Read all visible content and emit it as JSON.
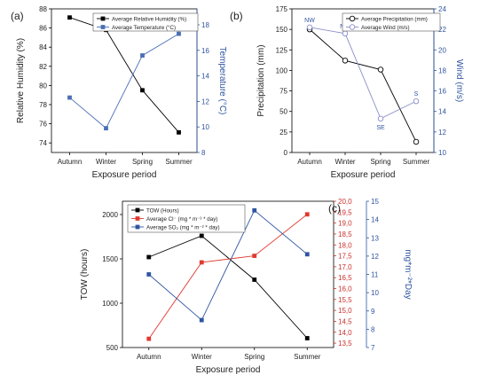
{
  "chart_data": [
    {
      "type": "line",
      "panel_label": "(a)",
      "categories": [
        "Autumn",
        "Winter",
        "Spring",
        "Summer"
      ],
      "xlabel": "Exposure period",
      "ylabel": "Relative Humidity (%)",
      "y2label": "Temperature (°C)",
      "ylim": [
        73,
        88
      ],
      "yticks": [
        74,
        76,
        78,
        80,
        82,
        84,
        86,
        88
      ],
      "y2lim": [
        8,
        19.25
      ],
      "y2ticks": [
        8,
        10,
        12,
        14,
        16,
        18
      ],
      "legend_position": "top-right",
      "series": [
        {
          "name": "Average Relative Humidity (%)",
          "axis": "left",
          "color": "#000000",
          "marker": "filled-square",
          "values": [
            87.1,
            85.8,
            79.5,
            75.1
          ]
        },
        {
          "name": "Average Temperature (°C)",
          "axis": "right",
          "color": "#4a6fb5",
          "marker": "filled-square",
          "values": [
            12.3,
            9.9,
            15.6,
            17.3
          ]
        }
      ]
    },
    {
      "type": "line",
      "panel_label": "(b)",
      "categories": [
        "Autumn",
        "Winter",
        "Spring",
        "Summer"
      ],
      "xlabel": "Exposure period",
      "ylabel": "Precipitation (mm)",
      "y2label": "Wind (m/s)",
      "ylim": [
        0,
        175
      ],
      "yticks": [
        0,
        25,
        50,
        75,
        100,
        125,
        150,
        175
      ],
      "y2lim": [
        10,
        24
      ],
      "y2ticks": [
        10,
        12,
        14,
        16,
        18,
        20,
        22,
        24
      ],
      "legend_position": "top-right",
      "series": [
        {
          "name": "Average Precipitation (mm)",
          "axis": "left",
          "color": "#000000",
          "marker": "open-circle",
          "values": [
            150,
            112,
            101,
            13
          ]
        },
        {
          "name": "Average Wind (m/s)",
          "axis": "right",
          "color": "#8a8fc8",
          "marker": "open-circle",
          "values": [
            22.2,
            21.6,
            13.3,
            15.0
          ]
        }
      ],
      "annotations": [
        {
          "series": 1,
          "index": 0,
          "text": "NW"
        },
        {
          "series": 1,
          "index": 1,
          "text": "NW"
        },
        {
          "series": 1,
          "index": 2,
          "text": "SE"
        },
        {
          "series": 1,
          "index": 3,
          "text": "S"
        }
      ]
    },
    {
      "type": "line",
      "panel_label": "(c)",
      "categories": [
        "Autumn",
        "Winter",
        "Spring",
        "Summer"
      ],
      "xlabel": "Exposure period",
      "ylabel": "TOW (hours)",
      "y3label": "mg*m⁻²*Day",
      "ylim": [
        500,
        2150
      ],
      "yticks": [
        500,
        1000,
        1500,
        2000
      ],
      "y2lim": [
        13.3,
        20
      ],
      "y2ticks": [
        "13,5",
        "14,0",
        "14,5",
        "15,0",
        "15,5",
        "16,0",
        "16,5",
        "17,0",
        "17,5",
        "18,0",
        "18,5",
        "19,0",
        "19,5",
        "20,0"
      ],
      "y2tick_values": [
        13.5,
        14.0,
        14.5,
        15.0,
        15.5,
        16.0,
        16.5,
        17.0,
        17.5,
        18.0,
        18.5,
        19.0,
        19.5,
        20.0
      ],
      "y3lim": [
        7,
        15
      ],
      "y3ticks": [
        7,
        8,
        9,
        10,
        11,
        12,
        13,
        14,
        15
      ],
      "legend_position": "top-left",
      "series": [
        {
          "name": "TOW (Hours)",
          "axis": "left",
          "color": "#000000",
          "marker": "filled-square",
          "values": [
            1520,
            1760,
            1265,
            605
          ]
        },
        {
          "name": "Average Cl⁻ (mg * m⁻² * day)",
          "axis": "right1",
          "color": "#e03a30",
          "marker": "filled-square",
          "values": [
            13.7,
            17.2,
            17.5,
            19.4
          ]
        },
        {
          "name": "Average SO₂ (mg * m⁻² * day)",
          "axis": "right2",
          "color": "#2f55a0",
          "marker": "filled-square",
          "values": [
            11.0,
            8.5,
            14.5,
            12.1
          ]
        }
      ]
    }
  ]
}
